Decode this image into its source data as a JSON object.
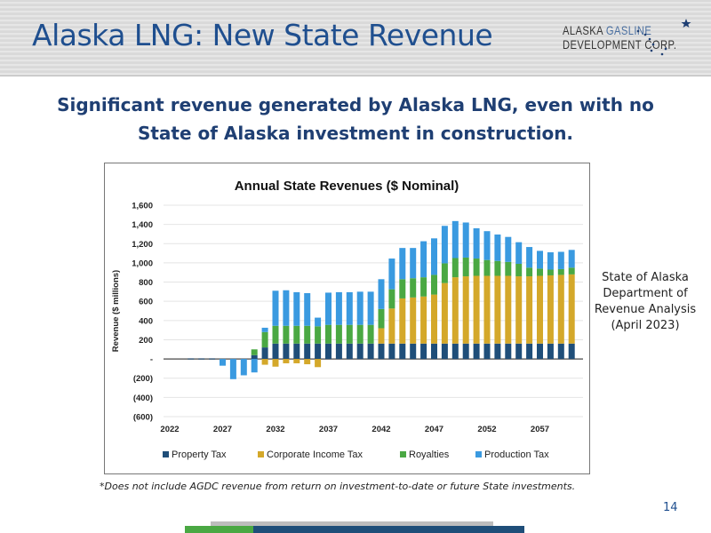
{
  "header": {
    "title": "Alaska LNG: New State Revenue",
    "logo_line1_a": "ALASKA",
    "logo_line1_b": "GASLINE",
    "logo_line2": "DEVELOPMENT CORP."
  },
  "subtitle": {
    "line1": "Significant revenue generated by Alaska LNG, even with no",
    "line2": "State of Alaska investment in construction."
  },
  "side_note": [
    "State of Alaska",
    "Department of",
    "Revenue Analysis",
    "(April 2023)"
  ],
  "footnote": "*Does not include AGDC revenue from return on investment-to-date or future State investments.",
  "page_number": "14",
  "colors": {
    "property": "#1f4e79",
    "cit": "#d4a82a",
    "royalties": "#4aa843",
    "production": "#3a9ae0",
    "title": "#1f4f8f"
  },
  "chart_data": {
    "type": "bar",
    "stacked": true,
    "title": "Annual State Revenues ($ Nominal)",
    "ylabel": "Revenue ($ millions)",
    "xlabel": "",
    "ylim": [
      -600,
      1600
    ],
    "yticks": [
      {
        "v": 1600,
        "l": "1,600"
      },
      {
        "v": 1400,
        "l": "1,400"
      },
      {
        "v": 1200,
        "l": "1,200"
      },
      {
        "v": 1000,
        "l": "1,000"
      },
      {
        "v": 800,
        "l": "800"
      },
      {
        "v": 600,
        "l": "600"
      },
      {
        "v": 400,
        "l": "400"
      },
      {
        "v": 200,
        "l": "200"
      },
      {
        "v": 0,
        "l": "-"
      },
      {
        "v": -200,
        "l": "(200)"
      },
      {
        "v": -400,
        "l": "(400)"
      },
      {
        "v": -600,
        "l": "(600)"
      }
    ],
    "xtick_labels": [
      "2022",
      "2027",
      "2032",
      "2037",
      "2042",
      "2047",
      "2052",
      "2057"
    ],
    "categories": [
      2022,
      2023,
      2024,
      2025,
      2026,
      2027,
      2028,
      2029,
      2030,
      2031,
      2032,
      2033,
      2034,
      2035,
      2036,
      2037,
      2038,
      2039,
      2040,
      2041,
      2042,
      2043,
      2044,
      2045,
      2046,
      2047,
      2048,
      2049,
      2050,
      2051,
      2052,
      2053,
      2054,
      2055,
      2056,
      2057,
      2058,
      2059,
      2060
    ],
    "legend_position": "bottom",
    "series": [
      {
        "name": "Property Tax",
        "key": "property",
        "values": [
          0,
          0,
          5,
          5,
          5,
          0,
          0,
          0,
          40,
          120,
          160,
          160,
          160,
          160,
          160,
          160,
          160,
          160,
          160,
          160,
          160,
          160,
          160,
          160,
          160,
          160,
          160,
          160,
          160,
          160,
          160,
          160,
          160,
          160,
          160,
          160,
          160,
          160,
          160
        ]
      },
      {
        "name": "Corporate Income Tax",
        "key": "cit",
        "values": [
          0,
          0,
          0,
          0,
          0,
          0,
          0,
          0,
          0,
          -60,
          -80,
          -45,
          -45,
          -55,
          -85,
          0,
          0,
          0,
          0,
          0,
          160,
          365,
          470,
          480,
          490,
          510,
          630,
          690,
          700,
          705,
          705,
          705,
          705,
          700,
          700,
          705,
          710,
          715,
          720
        ]
      },
      {
        "name": "Royalties",
        "key": "royalties",
        "values": [
          0,
          0,
          0,
          0,
          0,
          0,
          0,
          0,
          60,
          160,
          185,
          185,
          185,
          185,
          180,
          195,
          195,
          195,
          195,
          195,
          200,
          200,
          200,
          200,
          200,
          205,
          205,
          200,
          195,
          180,
          165,
          155,
          145,
          130,
          90,
          75,
          60,
          60,
          70
        ]
      },
      {
        "name": "Production Tax",
        "key": "production",
        "values": [
          0,
          0,
          0,
          0,
          0,
          -70,
          -210,
          -170,
          -140,
          45,
          365,
          370,
          350,
          340,
          90,
          335,
          340,
          340,
          345,
          345,
          310,
          320,
          325,
          315,
          375,
          380,
          390,
          385,
          365,
          315,
          300,
          275,
          260,
          225,
          215,
          185,
          180,
          180,
          185
        ]
      }
    ]
  }
}
